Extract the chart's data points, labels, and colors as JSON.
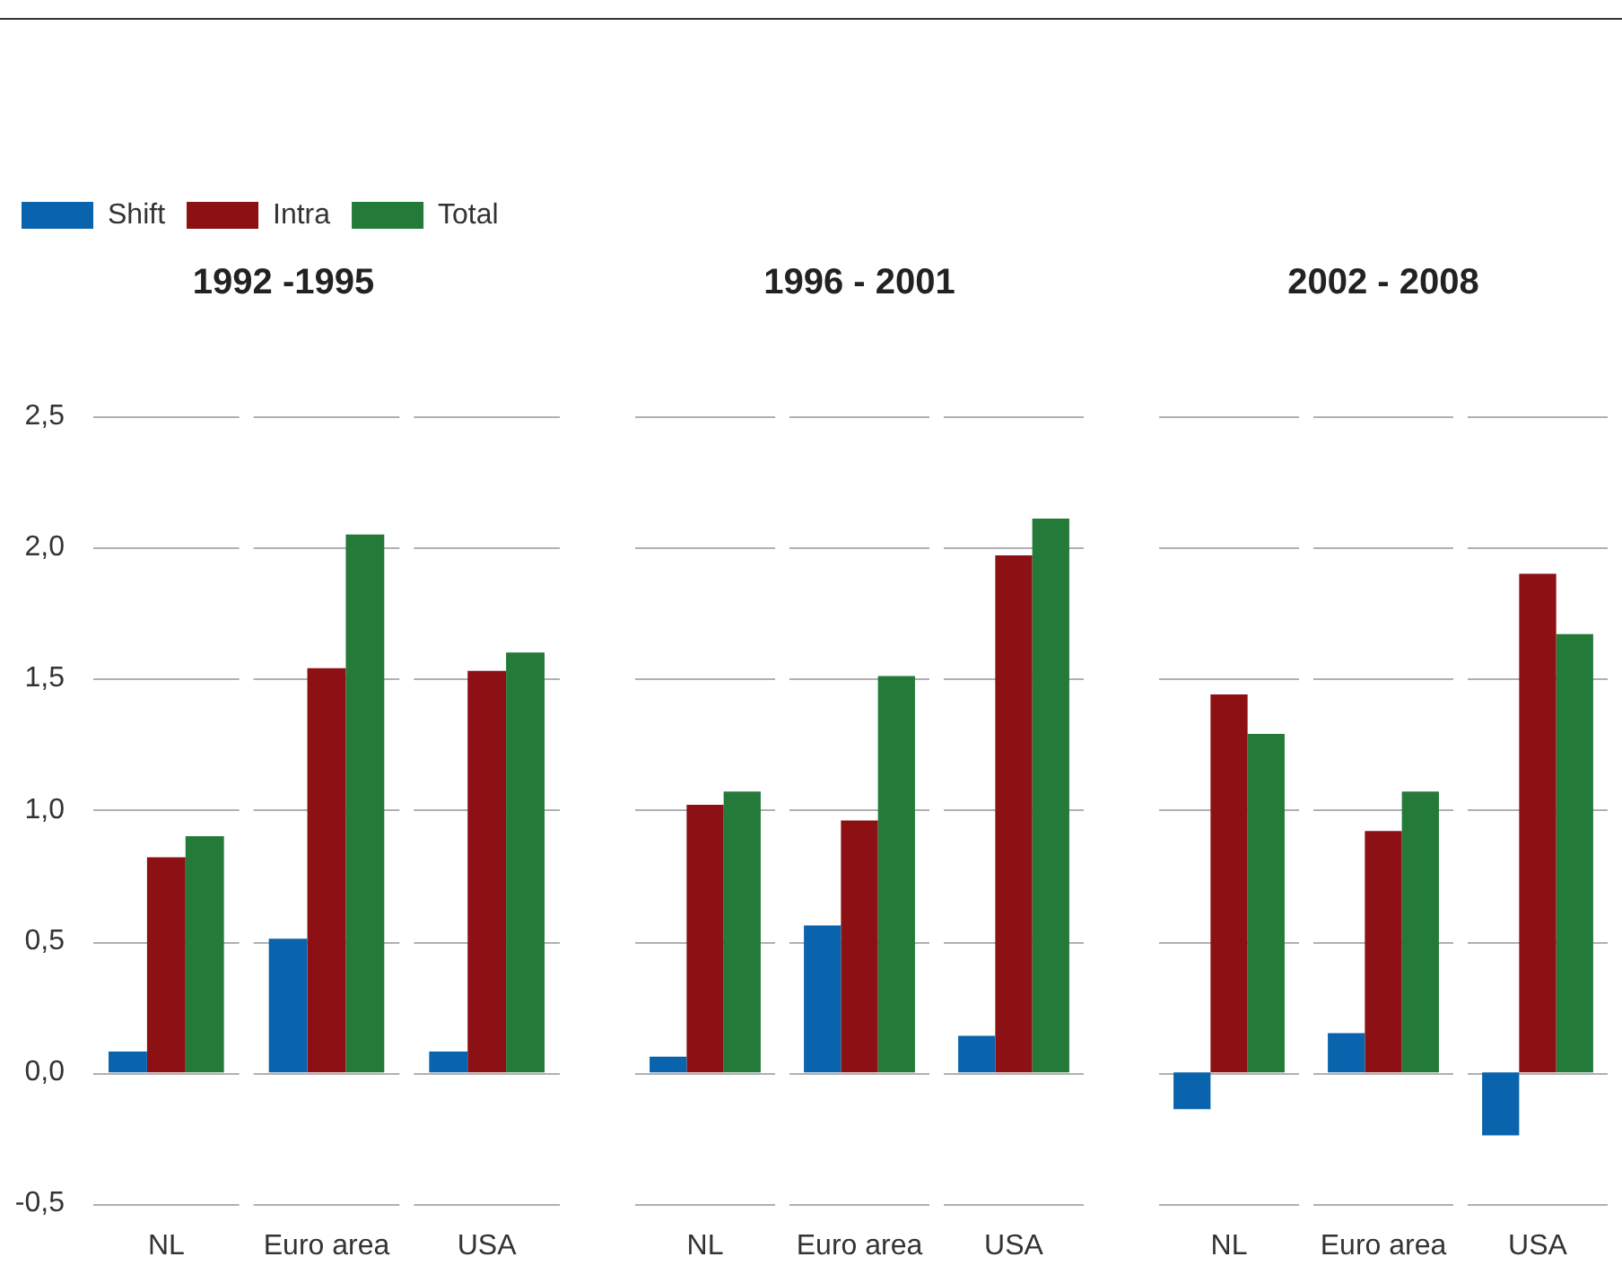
{
  "chart_data": [
    {
      "type": "bar",
      "title": "1992 -1995",
      "categories": [
        "NL",
        "Euro area",
        "USA"
      ],
      "legend": "top left",
      "grid": "y",
      "ylim": [
        -0.5,
        2.5
      ],
      "yticks": [
        {
          "value": -0.5,
          "label": "-0,5"
        },
        {
          "value": 0,
          "label": "0,0"
        },
        {
          "value": 0.5,
          "label": "0,5"
        },
        {
          "value": 1,
          "label": "1,0"
        },
        {
          "value": 1.5,
          "label": "1,5"
        },
        {
          "value": 2,
          "label": "2,0"
        },
        {
          "value": 2.5,
          "label": "2,5"
        }
      ],
      "series": [
        {
          "name": "Shift",
          "color": "#0a64ad",
          "values": [
            0.08,
            0.51,
            0.08
          ]
        },
        {
          "name": "Intra",
          "color": "#8c1014",
          "values": [
            0.82,
            1.54,
            1.53
          ]
        },
        {
          "name": "Total",
          "color": "#237a39",
          "values": [
            0.9,
            2.05,
            1.6
          ]
        }
      ]
    },
    {
      "type": "bar",
      "title": "1996 - 2001",
      "categories": [
        "NL",
        "Euro area",
        "USA"
      ],
      "legend": false,
      "grid": "y",
      "tick_labels": "x",
      "ylim": [
        -0.5,
        2.5
      ],
      "yticks": [
        -0.5,
        0,
        0.5,
        1,
        1.5,
        2,
        2.5
      ],
      "series": [
        {
          "color": "#0a64ad",
          "values": [
            0.06,
            0.56,
            0.14
          ]
        },
        {
          "color": "#8c1014",
          "values": [
            1.02,
            0.96,
            1.97
          ]
        },
        {
          "color": "#237a39",
          "values": [
            1.07,
            1.51,
            2.11
          ]
        }
      ]
    },
    {
      "type": "bar",
      "title": "2002 - 2008",
      "categories": [
        "NL",
        "Euro area",
        "USA"
      ],
      "legend": false,
      "grid": "y",
      "tick_labels": "x",
      "ylim": [
        -0.5,
        2.5
      ],
      "yticks": [
        -0.5,
        0,
        0.5,
        1,
        1.5,
        2,
        2.5
      ],
      "series": [
        {
          "color": "#0a64ad",
          "values": [
            -0.14,
            0.15,
            -0.24
          ]
        },
        {
          "color": "#8c1014",
          "values": [
            1.44,
            0.92,
            1.9
          ]
        },
        {
          "color": "#237a39",
          "values": [
            1.29,
            1.07,
            1.67
          ]
        }
      ]
    }
  ]
}
